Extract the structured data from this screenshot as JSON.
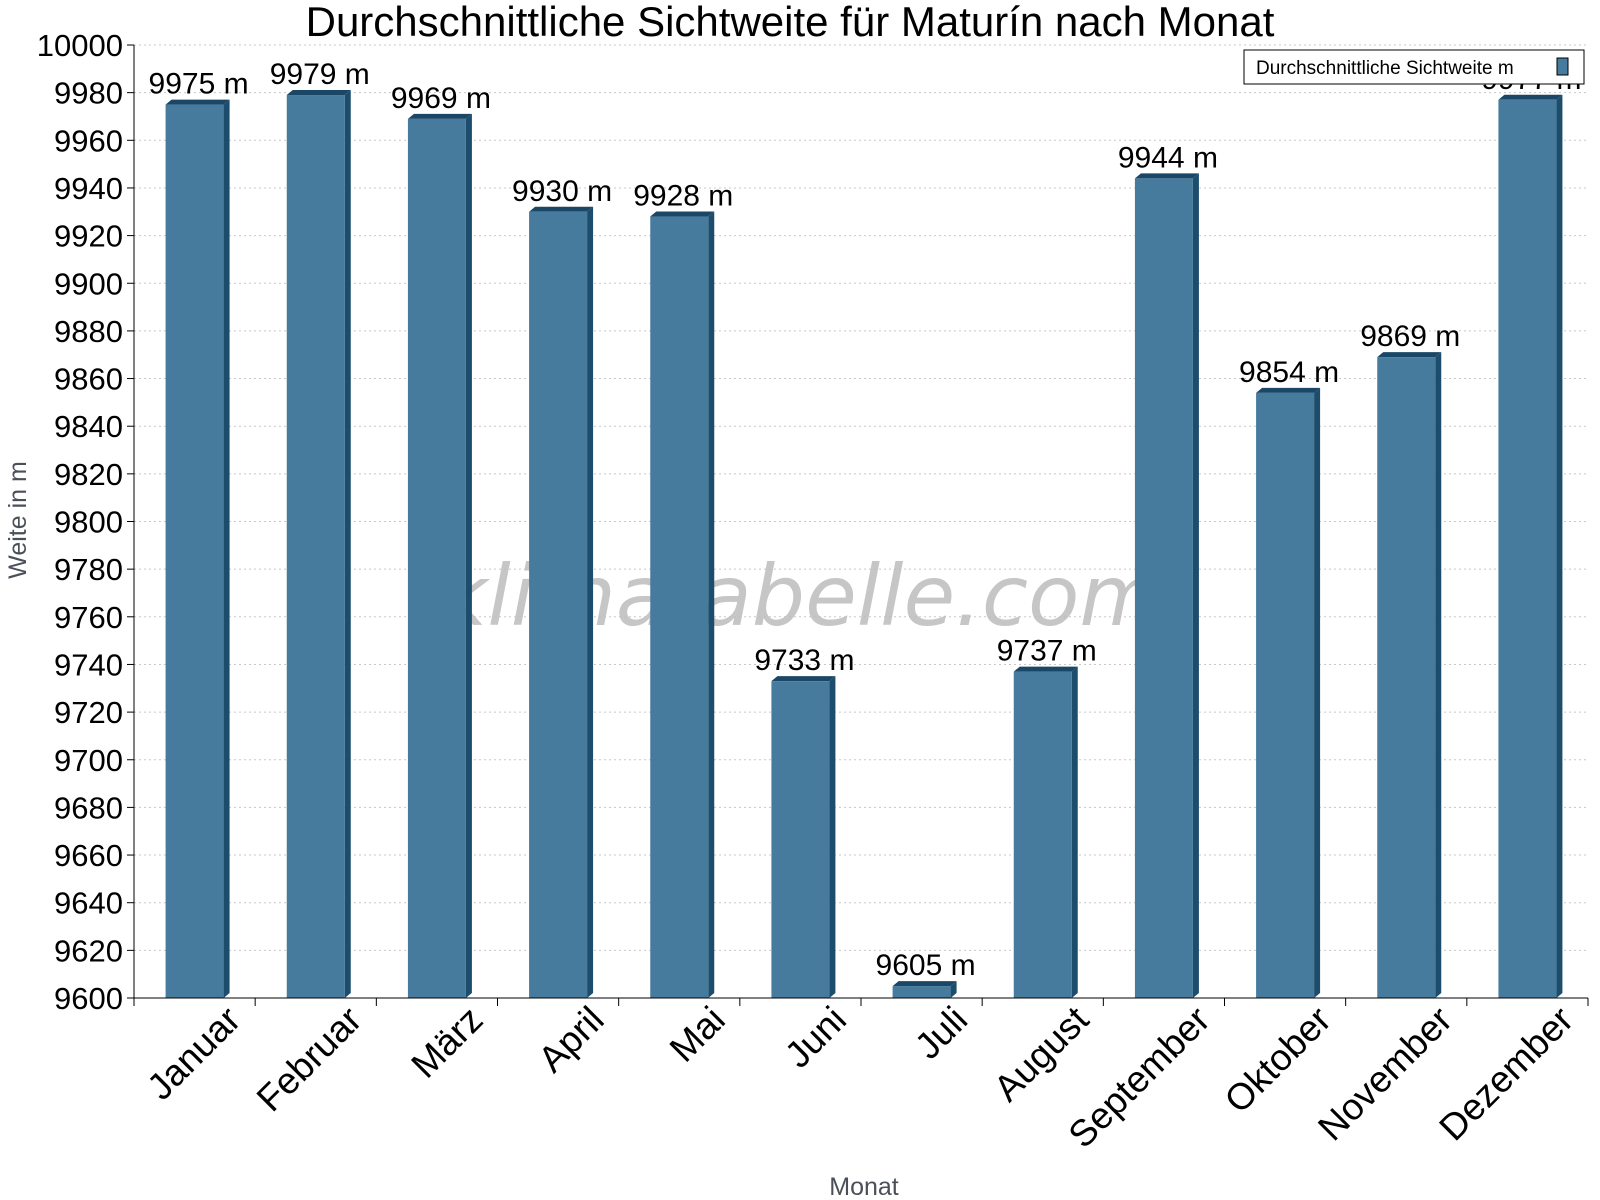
{
  "watermark": "klimatabelle.com",
  "legend": {
    "label": "Durchschnittliche Sichtweite m"
  },
  "chart_data": {
    "type": "bar",
    "title": "Durchschnittliche Sichtweite für Maturín nach Monat",
    "xlabel": "Monat",
    "ylabel": "Weite in m",
    "categories": [
      "Januar",
      "Februar",
      "März",
      "April",
      "Mai",
      "Juni",
      "Juli",
      "August",
      "September",
      "Oktober",
      "November",
      "Dezember"
    ],
    "series": [
      {
        "name": "Durchschnittliche Sichtweite m",
        "values": [
          9975,
          9979,
          9969,
          9930,
          9928,
          9733,
          9605,
          9737,
          9944,
          9854,
          9869,
          9977
        ],
        "labels": [
          "9975 m",
          "9979 m",
          "9969 m",
          "9930 m",
          "9928 m",
          "9733 m",
          "9605 m",
          "9737 m",
          "9944 m",
          "9854 m",
          "9869 m",
          "9977 m"
        ]
      }
    ],
    "ylim": [
      9600,
      10000
    ],
    "yticks": [
      9600,
      9620,
      9640,
      9660,
      9680,
      9700,
      9720,
      9740,
      9760,
      9780,
      9800,
      9820,
      9840,
      9860,
      9880,
      9900,
      9920,
      9940,
      9960,
      9980,
      10000
    ],
    "grid": true,
    "legend_position": "top-right",
    "colors": {
      "bar": "#467b9d",
      "bar_side": "#1d4d6d",
      "bar_top": "#1b4767"
    }
  }
}
